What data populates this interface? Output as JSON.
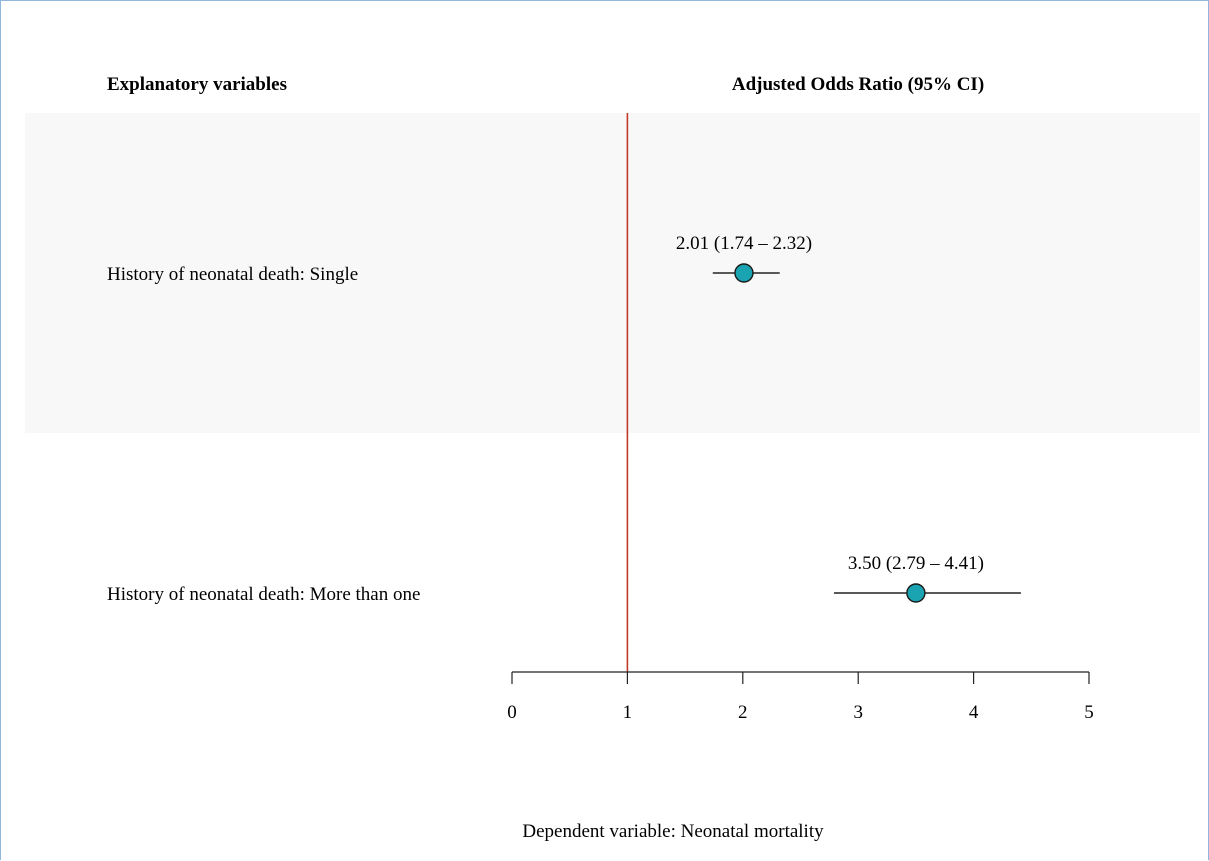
{
  "headers": {
    "left": "Explanatory variables",
    "right": "Adjusted Odds Ratio (95% CI)"
  },
  "footer": "Dependent variable: Neonatal mortality",
  "colors": {
    "point_fill": "#1aa3b0",
    "reference_line": "#c0392b",
    "band": "#f8f8f8",
    "frame": "#8fb8dc"
  },
  "chart_data": {
    "type": "forest",
    "xlim": [
      0,
      5
    ],
    "xticks": [
      0,
      1,
      2,
      3,
      4,
      5
    ],
    "reference_value": 1,
    "rows": [
      {
        "label": "History of neonatal death: Single",
        "estimate": 2.01,
        "lower": 1.74,
        "upper": 2.32,
        "text": "2.01 (1.74 – 2.32)",
        "shaded": true
      },
      {
        "label": "History of neonatal death: More than one",
        "estimate": 3.5,
        "lower": 2.79,
        "upper": 4.41,
        "text": "3.50 (2.79 – 4.41)",
        "shaded": false
      }
    ]
  }
}
